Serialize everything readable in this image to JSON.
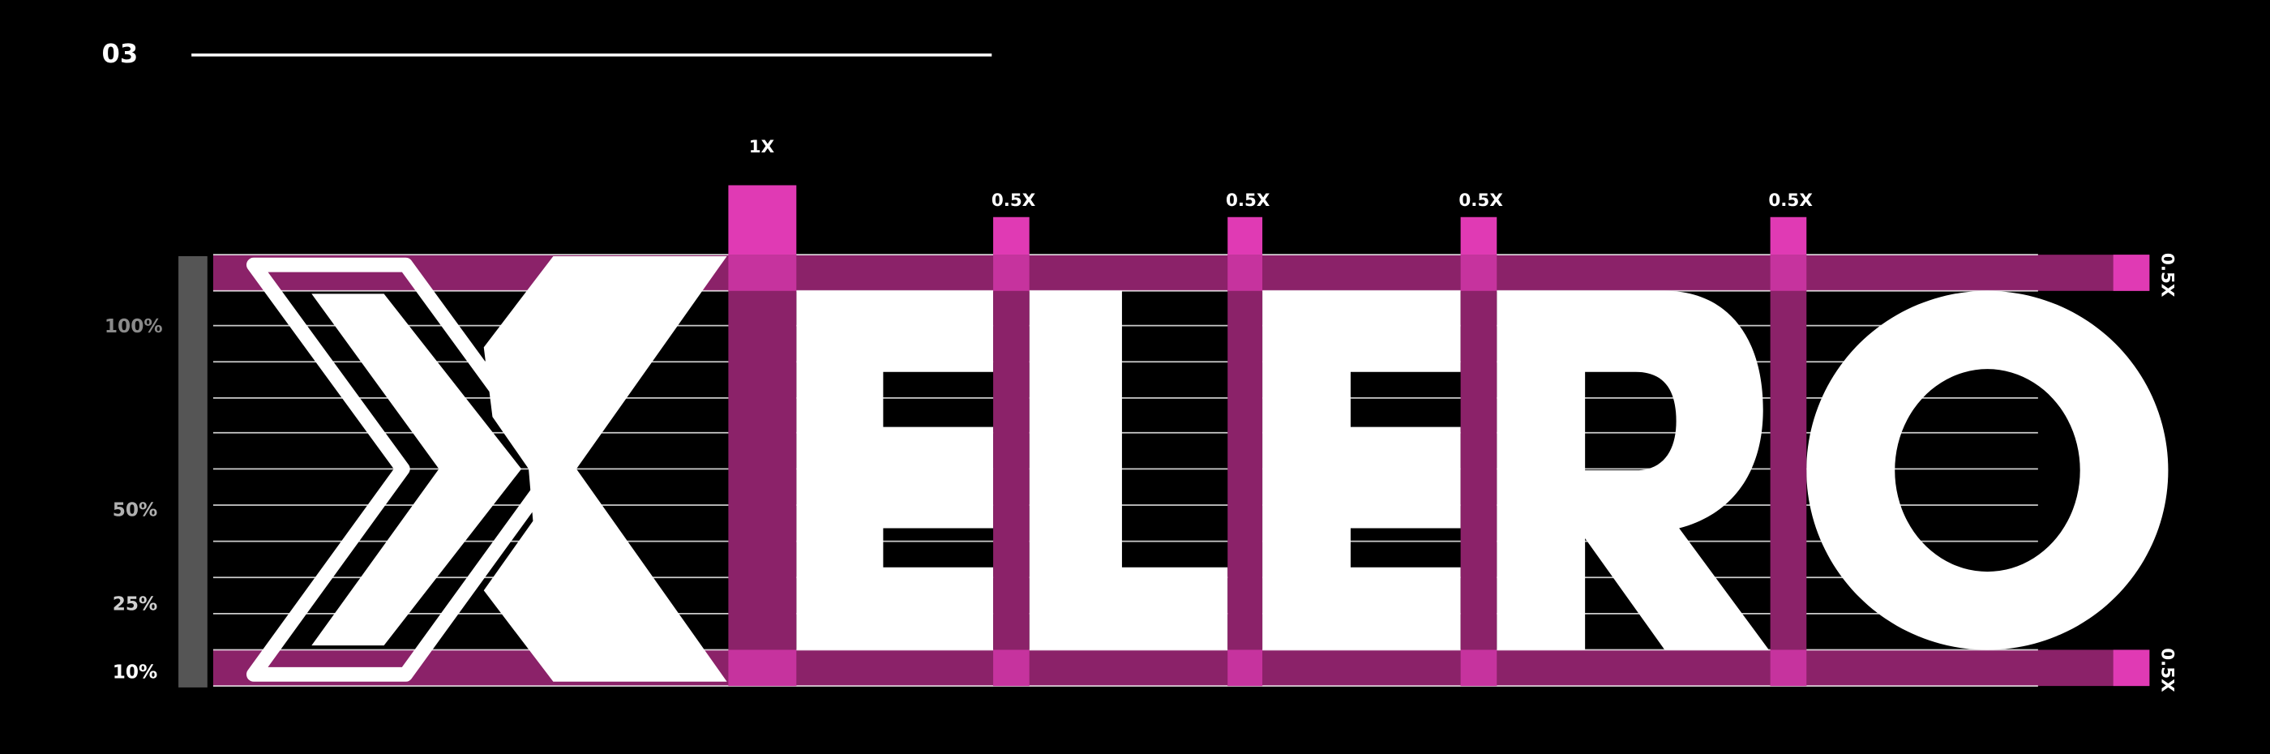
{
  "header": {
    "number": "03"
  },
  "spacing_labels": {
    "top": [
      "1X",
      "0.5X",
      "0.5X",
      "0.5X",
      "0.5X"
    ],
    "right": [
      "0.5X",
      "0.5X"
    ]
  },
  "percent_labels": [
    "100%",
    "50%",
    "25%",
    "10%"
  ]
}
